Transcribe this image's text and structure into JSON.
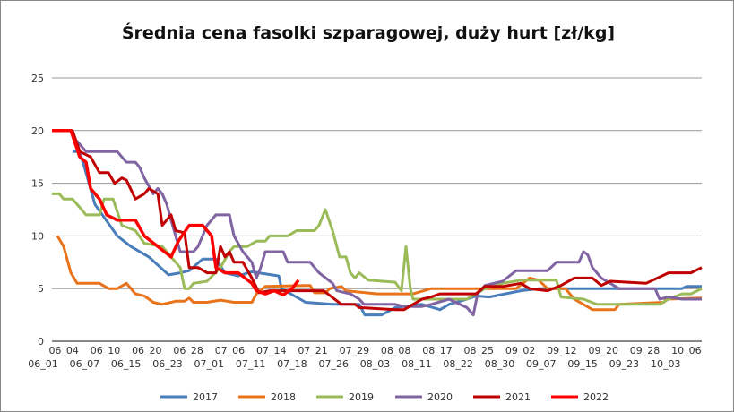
{
  "chart_data": {
    "type": "line",
    "title": "Średnia cena fasolki szparagowej, duży hurt [zł/kg]",
    "xlabel": "",
    "ylabel": "",
    "ylim": [
      0,
      25
    ],
    "yticks": [
      0,
      5,
      10,
      15,
      20,
      25
    ],
    "xlim": [
      0.43,
      31.74
    ],
    "grid": true,
    "legend": "bottom",
    "categories": [
      "06_01",
      "06_04",
      "06_07",
      "06_10",
      "06_15",
      "06_20",
      "06_23",
      "06_28",
      "07_01",
      "07_06",
      "07_11",
      "07_14",
      "07_18",
      "07_21",
      "07_26",
      "07_29",
      "08_03",
      "08_08",
      "08_11",
      "08_17",
      "08_22",
      "08_25",
      "08_30",
      "09_02",
      "09_07",
      "09_12",
      "09_15",
      "09_20",
      "09_23",
      "09_28",
      "10_03",
      "10_06"
    ],
    "x_note": "x values are category indices",
    "series": [
      {
        "name": "2017",
        "color": "#4a7ebb",
        "points": [
          [
            1.42,
            18
          ],
          [
            1.77,
            18
          ],
          [
            2.07,
            16
          ],
          [
            2.5,
            13
          ],
          [
            3.58,
            10
          ],
          [
            4.23,
            9
          ],
          [
            5.1,
            8
          ],
          [
            5.66,
            7
          ],
          [
            6.05,
            6.3
          ],
          [
            6.61,
            6.5
          ],
          [
            7.04,
            6.7
          ],
          [
            7.69,
            7.8
          ],
          [
            8.33,
            7.8
          ],
          [
            8.77,
            6.5
          ],
          [
            9.41,
            6.2
          ],
          [
            10.06,
            6.6
          ],
          [
            11.36,
            6.2
          ],
          [
            11.49,
            5
          ],
          [
            12.65,
            3.7
          ],
          [
            13.95,
            3.5
          ],
          [
            15.24,
            3.5
          ],
          [
            15.5,
            2.5
          ],
          [
            16.32,
            2.5
          ],
          [
            16.97,
            3.2
          ],
          [
            18.26,
            3.5
          ],
          [
            19.13,
            3
          ],
          [
            19.56,
            3.5
          ],
          [
            20.42,
            4
          ],
          [
            20.86,
            4.3
          ],
          [
            21.5,
            4.2
          ],
          [
            23.02,
            4.8
          ],
          [
            23.88,
            5
          ],
          [
            30.79,
            5
          ],
          [
            31.0,
            5.2
          ],
          [
            31.74,
            5.2
          ]
        ]
      },
      {
        "name": "2018",
        "color": "#e8731a",
        "points": [
          [
            0.69,
            10
          ],
          [
            0.99,
            9
          ],
          [
            1.34,
            6.5
          ],
          [
            1.64,
            5.5
          ],
          [
            2.72,
            5.5
          ],
          [
            3.15,
            5
          ],
          [
            3.58,
            5
          ],
          [
            4.02,
            5.5
          ],
          [
            4.45,
            4.5
          ],
          [
            4.88,
            4.3
          ],
          [
            5.31,
            3.7
          ],
          [
            5.74,
            3.5
          ],
          [
            6.39,
            3.8
          ],
          [
            6.82,
            3.8
          ],
          [
            7.04,
            4.1
          ],
          [
            7.25,
            3.7
          ],
          [
            7.9,
            3.7
          ],
          [
            8.55,
            3.9
          ],
          [
            9.2,
            3.7
          ],
          [
            10.06,
            3.7
          ],
          [
            10.28,
            4.5
          ],
          [
            10.71,
            5.2
          ],
          [
            12.65,
            5.3
          ],
          [
            12.87,
            5.3
          ],
          [
            13.08,
            4.6
          ],
          [
            13.6,
            4.6
          ],
          [
            13.82,
            5
          ],
          [
            14.38,
            5.2
          ],
          [
            14.6,
            4.8
          ],
          [
            16.11,
            4.5
          ],
          [
            17.83,
            4.5
          ],
          [
            18.7,
            5
          ],
          [
            22.8,
            5
          ],
          [
            23.45,
            6
          ],
          [
            23.88,
            5.8
          ],
          [
            24.31,
            5
          ],
          [
            25.17,
            5
          ],
          [
            25.6,
            4
          ],
          [
            26.04,
            3.5
          ],
          [
            26.47,
            3
          ],
          [
            27.55,
            3
          ],
          [
            27.76,
            3.5
          ],
          [
            29.92,
            3.7
          ],
          [
            30.01,
            4
          ],
          [
            31.74,
            4.1
          ]
        ]
      },
      {
        "name": "2019",
        "color": "#9bbb59",
        "points": [
          [
            0.43,
            14
          ],
          [
            0.78,
            14
          ],
          [
            0.99,
            13.5
          ],
          [
            1.42,
            13.5
          ],
          [
            1.86,
            12.5
          ],
          [
            2.07,
            12
          ],
          [
            2.72,
            12
          ],
          [
            2.94,
            13.5
          ],
          [
            3.37,
            13.5
          ],
          [
            3.8,
            11
          ],
          [
            4.45,
            10.5
          ],
          [
            4.88,
            9.3
          ],
          [
            5.74,
            9
          ],
          [
            6.17,
            8
          ],
          [
            6.61,
            7
          ],
          [
            6.82,
            5
          ],
          [
            7.04,
            5
          ],
          [
            7.25,
            5.5
          ],
          [
            7.9,
            5.7
          ],
          [
            8.55,
            7
          ],
          [
            8.98,
            8.5
          ],
          [
            9.2,
            9
          ],
          [
            9.85,
            9
          ],
          [
            10.28,
            9.5
          ],
          [
            10.71,
            9.5
          ],
          [
            10.92,
            10
          ],
          [
            11.79,
            10
          ],
          [
            12.22,
            10.5
          ],
          [
            13.08,
            10.5
          ],
          [
            13.3,
            11
          ],
          [
            13.6,
            12.5
          ],
          [
            13.95,
            10.5
          ],
          [
            14.29,
            8
          ],
          [
            14.6,
            8
          ],
          [
            14.81,
            6.5
          ],
          [
            15.03,
            6
          ],
          [
            15.24,
            6.5
          ],
          [
            15.67,
            5.8
          ],
          [
            16.97,
            5.6
          ],
          [
            17.27,
            4.8
          ],
          [
            17.49,
            9
          ],
          [
            17.7,
            5
          ],
          [
            17.83,
            4
          ],
          [
            19.13,
            4
          ],
          [
            20.42,
            4
          ],
          [
            20.86,
            4.5
          ],
          [
            21.29,
            5
          ],
          [
            22.15,
            5.5
          ],
          [
            23.02,
            5.8
          ],
          [
            24.74,
            5.8
          ],
          [
            24.96,
            4.2
          ],
          [
            26.04,
            4
          ],
          [
            26.69,
            3.5
          ],
          [
            29.06,
            3.5
          ],
          [
            29.71,
            3.5
          ],
          [
            30.14,
            4
          ],
          [
            30.79,
            4.5
          ],
          [
            31.22,
            4.5
          ],
          [
            31.74,
            5
          ]
        ]
      },
      {
        "name": "2020",
        "color": "#8064a2",
        "points": [
          [
            1.42,
            19.3
          ],
          [
            1.64,
            19
          ],
          [
            2.07,
            18
          ],
          [
            3.58,
            18
          ],
          [
            4.02,
            17
          ],
          [
            4.45,
            17
          ],
          [
            4.66,
            16.5
          ],
          [
            4.88,
            15.5
          ],
          [
            5.31,
            14
          ],
          [
            5.53,
            14.5
          ],
          [
            5.74,
            14
          ],
          [
            5.96,
            13
          ],
          [
            6.17,
            11.5
          ],
          [
            6.39,
            10
          ],
          [
            6.61,
            8.5
          ],
          [
            7.25,
            8.5
          ],
          [
            7.47,
            9
          ],
          [
            7.9,
            11
          ],
          [
            8.33,
            12
          ],
          [
            8.98,
            12
          ],
          [
            9.2,
            10
          ],
          [
            9.63,
            8.5
          ],
          [
            10.06,
            7.5
          ],
          [
            10.28,
            6
          ],
          [
            10.49,
            7
          ],
          [
            10.71,
            8.5
          ],
          [
            11.57,
            8.5
          ],
          [
            11.79,
            7.5
          ],
          [
            12.87,
            7.5
          ],
          [
            13.3,
            6.5
          ],
          [
            13.95,
            5.5
          ],
          [
            14.16,
            4.8
          ],
          [
            14.81,
            4.5
          ],
          [
            15.24,
            4
          ],
          [
            15.46,
            3.5
          ],
          [
            16.97,
            3.5
          ],
          [
            17.4,
            3.3
          ],
          [
            18.26,
            3.3
          ],
          [
            18.7,
            3.5
          ],
          [
            19.56,
            4
          ],
          [
            20.42,
            3.2
          ],
          [
            20.73,
            2.5
          ],
          [
            20.94,
            4.5
          ],
          [
            21.29,
            5.3
          ],
          [
            22.15,
            5.7
          ],
          [
            22.8,
            6.7
          ],
          [
            24.31,
            6.7
          ],
          [
            24.74,
            7.5
          ],
          [
            25.82,
            7.5
          ],
          [
            26.04,
            8.5
          ],
          [
            26.25,
            8.2
          ],
          [
            26.47,
            7
          ],
          [
            26.9,
            6
          ],
          [
            27.76,
            5
          ],
          [
            29.49,
            5
          ],
          [
            29.71,
            4
          ],
          [
            30.14,
            4.2
          ],
          [
            30.79,
            4
          ],
          [
            31.74,
            4
          ]
        ]
      },
      {
        "name": "2021",
        "color": "#c00000",
        "points": [
          [
            0.43,
            20
          ],
          [
            1.42,
            20
          ],
          [
            1.77,
            18
          ],
          [
            2.29,
            17.5
          ],
          [
            2.72,
            16
          ],
          [
            3.15,
            16
          ],
          [
            3.45,
            15
          ],
          [
            3.8,
            15.5
          ],
          [
            4.02,
            15.3
          ],
          [
            4.45,
            13.5
          ],
          [
            4.88,
            14
          ],
          [
            5.1,
            14.5
          ],
          [
            5.53,
            14
          ],
          [
            5.74,
            11
          ],
          [
            6.17,
            12
          ],
          [
            6.39,
            10.5
          ],
          [
            6.82,
            10.3
          ],
          [
            7.04,
            7
          ],
          [
            7.47,
            7
          ],
          [
            7.9,
            6.5
          ],
          [
            8.33,
            6.5
          ],
          [
            8.55,
            9
          ],
          [
            8.77,
            8
          ],
          [
            8.98,
            8.5
          ],
          [
            9.2,
            7.5
          ],
          [
            9.63,
            7.5
          ],
          [
            10.06,
            6
          ],
          [
            10.41,
            4.6
          ],
          [
            10.92,
            4.8
          ],
          [
            13.52,
            4.8
          ],
          [
            14.38,
            3.5
          ],
          [
            15.03,
            3.5
          ],
          [
            15.24,
            3.2
          ],
          [
            16.97,
            3
          ],
          [
            17.4,
            3
          ],
          [
            17.83,
            3.5
          ],
          [
            18.26,
            4
          ],
          [
            18.7,
            4.2
          ],
          [
            19.13,
            4.5
          ],
          [
            20.86,
            4.5
          ],
          [
            21.29,
            5.2
          ],
          [
            22.15,
            5.2
          ],
          [
            23.02,
            5.5
          ],
          [
            23.45,
            5
          ],
          [
            24.31,
            4.8
          ],
          [
            24.96,
            5.3
          ],
          [
            25.6,
            6
          ],
          [
            26.47,
            6
          ],
          [
            26.9,
            5.3
          ],
          [
            27.33,
            5.7
          ],
          [
            29.06,
            5.5
          ],
          [
            30.14,
            6.5
          ],
          [
            31.22,
            6.5
          ],
          [
            31.74,
            7
          ]
        ]
      },
      {
        "name": "2022",
        "color": "#ff0000",
        "points": [
          [
            0.43,
            20
          ],
          [
            1.34,
            20
          ],
          [
            1.77,
            17.5
          ],
          [
            2.07,
            17
          ],
          [
            2.29,
            14.5
          ],
          [
            2.72,
            13.5
          ],
          [
            3.07,
            12
          ],
          [
            3.58,
            11.5
          ],
          [
            4.45,
            11.5
          ],
          [
            4.88,
            10
          ],
          [
            5.53,
            9
          ],
          [
            6.17,
            8
          ],
          [
            6.52,
            9.5
          ],
          [
            7.04,
            11
          ],
          [
            7.69,
            11
          ],
          [
            8.12,
            10
          ],
          [
            8.33,
            7
          ],
          [
            8.77,
            6.5
          ],
          [
            9.41,
            6.5
          ],
          [
            10.06,
            5.5
          ],
          [
            10.28,
            4.8
          ],
          [
            10.71,
            4.5
          ],
          [
            11.14,
            4.8
          ],
          [
            11.57,
            4.4
          ],
          [
            12.0,
            5
          ],
          [
            12.31,
            5.8
          ]
        ]
      }
    ]
  }
}
